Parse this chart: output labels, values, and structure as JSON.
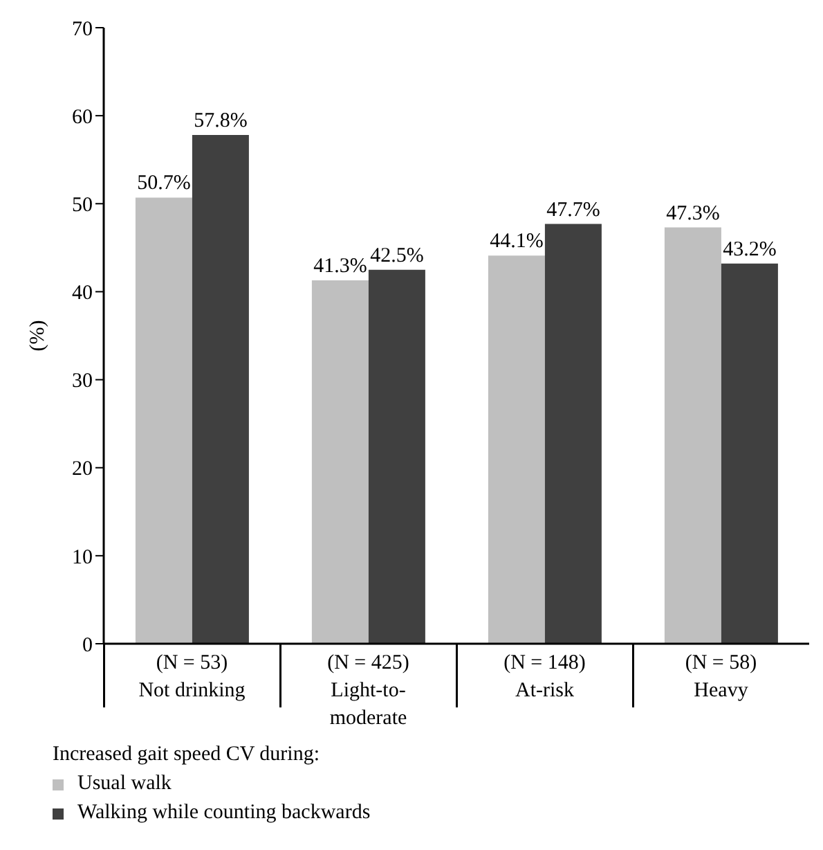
{
  "chart_data": {
    "type": "bar",
    "ylabel": "(%)",
    "legend_title": "Increased gait speed CV during:",
    "categories": [
      "(N = 53) Not drinking",
      "(N = 425) Light-to-moderate",
      "(N = 148) At-risk",
      "(N = 58) Heavy"
    ],
    "series": [
      {
        "name": "Usual walk",
        "color": "#bfbfbf",
        "values": [
          50.7,
          41.3,
          44.1,
          47.3
        ],
        "value_labels": [
          "50.7%",
          "41.3%",
          "44.1%",
          "47.3%"
        ]
      },
      {
        "name": "Walking while counting backwards",
        "color": "#404040",
        "values": [
          57.8,
          42.5,
          47.7,
          43.2
        ],
        "value_labels": [
          "57.8%",
          "42.5%",
          "47.7%",
          "43.2%"
        ]
      }
    ],
    "ylim": [
      0,
      70
    ],
    "yticks": [
      0,
      10,
      20,
      30,
      40,
      50,
      60,
      70
    ],
    "grid": false,
    "legend": "bottom left"
  }
}
